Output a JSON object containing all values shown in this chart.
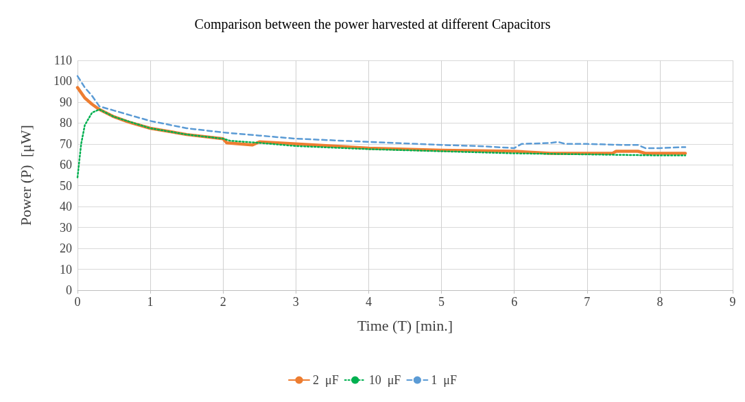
{
  "chart_data": {
    "type": "line",
    "title": "Comparison between the power harvested at different Capacitors",
    "xlabel": "Time (T) [min.]",
    "ylabel": "Power (P)  [μW]",
    "xlim": [
      0,
      9
    ],
    "xticks": [
      0,
      1,
      2,
      3,
      4,
      5,
      6,
      7,
      8,
      9
    ],
    "ylim": [
      0,
      110
    ],
    "yticks": [
      0,
      10,
      20,
      30,
      40,
      50,
      60,
      70,
      80,
      90,
      100,
      110
    ],
    "grid": true,
    "legend": "bottom",
    "marker": "none",
    "series": [
      {
        "name": "2  μF",
        "color": "#ed7d31",
        "line_style": "solid",
        "x": [
          0,
          0.1,
          0.2,
          0.3,
          0.5,
          0.7,
          1,
          1.5,
          2,
          2.05,
          2.4,
          2.5,
          3,
          4,
          5,
          6,
          6.5,
          7,
          7.35,
          7.4,
          7.7,
          7.8,
          8.35
        ],
        "values": [
          97,
          92,
          89,
          86.5,
          83,
          80.5,
          77.5,
          74.5,
          72.5,
          70.5,
          69.5,
          71,
          70,
          68,
          67,
          66.5,
          65.5,
          65.5,
          65.5,
          66.5,
          66.5,
          65.5,
          65.5
        ]
      },
      {
        "name": "10  μF",
        "color": "#00b050",
        "line_style": "dotted",
        "x": [
          0,
          0.05,
          0.1,
          0.2,
          0.3,
          0.5,
          1,
          1.5,
          2,
          2.1,
          2.5,
          3,
          4,
          5,
          6,
          7,
          8,
          8.35
        ],
        "values": [
          54,
          70,
          79,
          85,
          86.5,
          83,
          77.5,
          74.5,
          72.5,
          71.5,
          70.5,
          69,
          67.5,
          66.5,
          65.5,
          65,
          64.5,
          64.5
        ]
      },
      {
        "name": "1  μF",
        "color": "#5b9bd5",
        "line_style": "dashed",
        "x": [
          0,
          0.1,
          0.2,
          0.3,
          0.5,
          1,
          1.5,
          2,
          2.5,
          3,
          4,
          5,
          5.5,
          6,
          6.1,
          6.5,
          6.6,
          6.7,
          7,
          7.5,
          7.7,
          7.8,
          8,
          8.35
        ],
        "values": [
          102.5,
          97,
          93,
          88,
          86,
          81,
          77.5,
          75.5,
          74,
          72.5,
          71,
          69.5,
          69,
          68,
          70,
          70.5,
          71,
          70,
          70,
          69.5,
          69.5,
          68,
          68,
          68.5
        ]
      }
    ]
  }
}
